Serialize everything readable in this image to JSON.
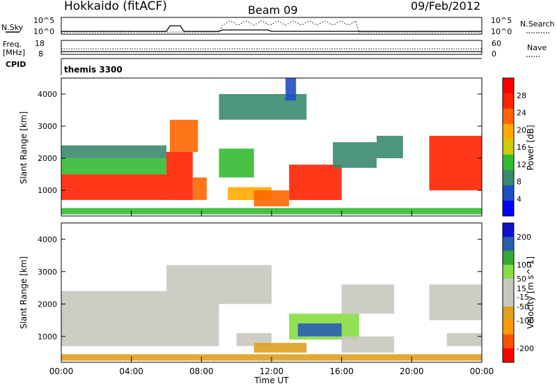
{
  "header": {
    "site": "Hokkaido (fitACF)",
    "beam": "Beam 09",
    "date": "09/Feb/2012"
  },
  "top_panels": {
    "noise_left_label": "N.Sky",
    "noise_right_label": "N.Search",
    "noise_tick_hi": "10^5",
    "noise_tick_lo": "10^0",
    "freq_label": "Freq.",
    "freq_unit": "[MHz]",
    "freq_tick_hi": "18",
    "freq_tick_lo": "8",
    "nave_label": "Nave",
    "nave_tick_hi": "60",
    "nave_tick_lo": "0",
    "cpid_label": "CPID",
    "cpid_value": "themis 3300"
  },
  "colors": {
    "power_scale": [
      "#0000ff",
      "#1f4fc4",
      "#3a8a6e",
      "#33bb33",
      "#cccc00",
      "#ffaa00",
      "#ff6600",
      "#ff2200",
      "#ff0000"
    ],
    "velocity_scale": [
      "#ff0000",
      "#ff5000",
      "#ff9900",
      "#e0a020",
      "#c8c8c0",
      "#c8c8c0",
      "#88dd44",
      "#33aa33",
      "#2a5fb0",
      "#1010d0"
    ],
    "ground_scatter": "#c8c8c0"
  },
  "chart_data": [
    {
      "type": "heatmap",
      "title": "",
      "ylabel": "Slant Range [km]",
      "xlabel": "",
      "ylim": [
        200,
        4500
      ],
      "yticks": [
        "1000",
        "2000",
        "3000",
        "4000"
      ],
      "x_range_hours": [
        0,
        24
      ],
      "colorbar_label": "Power [dB]",
      "colorbar_ticks": [
        "4",
        "8",
        "12",
        "16",
        "20",
        "24",
        "28"
      ],
      "colorbar_range": [
        0,
        32
      ],
      "regions": [
        {
          "t0": 0,
          "t1": 6,
          "r0": 700,
          "r1": 1500,
          "value": 28
        },
        {
          "t0": 0,
          "t1": 6,
          "r0": 1500,
          "r1": 2000,
          "value": 14
        },
        {
          "t0": 0,
          "t1": 6,
          "r0": 2000,
          "r1": 2400,
          "value": 8
        },
        {
          "t0": 6,
          "t1": 7.5,
          "r0": 700,
          "r1": 2200,
          "value": 28
        },
        {
          "t0": 6.2,
          "t1": 7.8,
          "r0": 2200,
          "r1": 3200,
          "value": 24
        },
        {
          "t0": 7.5,
          "t1": 8.3,
          "r0": 700,
          "r1": 1400,
          "value": 22
        },
        {
          "t0": 9,
          "t1": 11,
          "r0": 1400,
          "r1": 2300,
          "value": 14
        },
        {
          "t0": 9.5,
          "t1": 12,
          "r0": 700,
          "r1": 1100,
          "value": 20
        },
        {
          "t0": 11,
          "t1": 13,
          "r0": 500,
          "r1": 1000,
          "value": 24
        },
        {
          "t0": 13,
          "t1": 16,
          "r0": 700,
          "r1": 1800,
          "value": 26
        },
        {
          "t0": 15.5,
          "t1": 18,
          "r0": 1700,
          "r1": 2500,
          "value": 10
        },
        {
          "t0": 18,
          "t1": 19.5,
          "r0": 2000,
          "r1": 2700,
          "value": 8
        },
        {
          "t0": 21,
          "t1": 24,
          "r0": 1000,
          "r1": 2700,
          "value": 26
        },
        {
          "t0": 9,
          "t1": 14,
          "r0": 3200,
          "r1": 4000,
          "value": 8
        },
        {
          "t0": 12.8,
          "t1": 13.4,
          "r0": 3800,
          "r1": 4500,
          "value": 6
        },
        {
          "t0": 0,
          "t1": 24,
          "r0": 250,
          "r1": 450,
          "value": 12
        }
      ]
    },
    {
      "type": "heatmap",
      "title": "",
      "ylabel": "Slant Range [km]",
      "xlabel": "Time UT",
      "ylim": [
        200,
        4500
      ],
      "yticks": [
        "1000",
        "2000",
        "3000",
        "4000"
      ],
      "xticks": [
        "00:00",
        "04:00",
        "08:00",
        "12:00",
        "16:00",
        "20:00",
        "00:00"
      ],
      "x_range_hours": [
        0,
        24
      ],
      "colorbar_label": "Velocity [m s^-1]",
      "colorbar_ticks": [
        "-200",
        "-100",
        "-50",
        "-15",
        "15",
        "50",
        "100",
        "200"
      ],
      "colorbar_range": [
        -250,
        250
      ],
      "regions": [
        {
          "t0": 0,
          "t1": 9,
          "r0": 700,
          "r1": 2400,
          "value": 0,
          "ground": true
        },
        {
          "t0": 6,
          "t1": 9,
          "r0": 2400,
          "r1": 3200,
          "value": 0,
          "ground": true
        },
        {
          "t0": 9,
          "t1": 12,
          "r0": 2000,
          "r1": 3200,
          "value": 0,
          "ground": true
        },
        {
          "t0": 10,
          "t1": 12,
          "r0": 700,
          "r1": 1100,
          "value": 0,
          "ground": true
        },
        {
          "t0": 13,
          "t1": 17,
          "r0": 900,
          "r1": 1700,
          "value": 90
        },
        {
          "t0": 13.5,
          "t1": 16,
          "r0": 1000,
          "r1": 1400,
          "value": 170
        },
        {
          "t0": 11,
          "t1": 14,
          "r0": 500,
          "r1": 800,
          "value": -60
        },
        {
          "t0": 16,
          "t1": 19,
          "r0": 500,
          "r1": 1000,
          "value": 0,
          "ground": true
        },
        {
          "t0": 16,
          "t1": 19,
          "r0": 1700,
          "r1": 2600,
          "value": 0,
          "ground": true
        },
        {
          "t0": 21,
          "t1": 24,
          "r0": 1500,
          "r1": 2600,
          "value": 40
        },
        {
          "t0": 22,
          "t1": 24,
          "r0": 700,
          "r1": 1100,
          "value": 0,
          "ground": true
        },
        {
          "t0": 0,
          "t1": 24,
          "r0": 250,
          "r1": 450,
          "value": -80
        }
      ]
    }
  ]
}
